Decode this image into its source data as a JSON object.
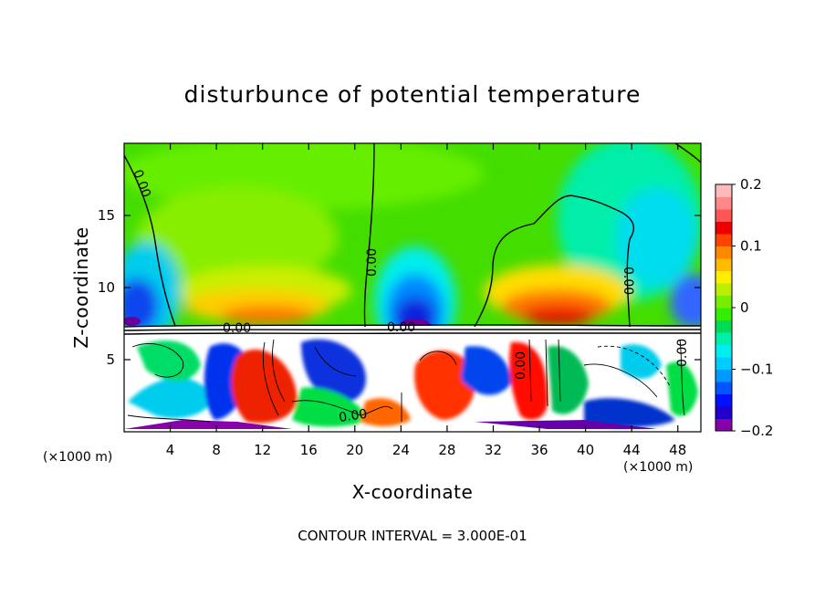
{
  "chart_data": {
    "type": "heatmap",
    "title": "disturbunce of potential temperature",
    "xlabel": "X-coordinate",
    "ylabel": "Z-coordinate",
    "x_unit": "(×1000 m)",
    "x_unit_right": "(×1000 m)",
    "xlim": [
      0,
      50
    ],
    "ylim": [
      0,
      20
    ],
    "xticks": [
      4,
      8,
      12,
      16,
      20,
      24,
      28,
      32,
      36,
      40,
      44,
      48
    ],
    "yticks": [
      5,
      10,
      15
    ],
    "colorbar": {
      "ticks": [
        0.2,
        0.1,
        0,
        -0.1,
        -0.2
      ],
      "tick_labels": [
        "0.2",
        "0.1",
        "0",
        "−0.1",
        "−0.2"
      ],
      "range": [
        -0.2,
        0.2
      ],
      "colors": [
        "#8800aa",
        "#2200cc",
        "#0011ff",
        "#0055ff",
        "#0099ff",
        "#00ccff",
        "#00eeee",
        "#00eeaa",
        "#00dd55",
        "#33ee00",
        "#77ee00",
        "#bbee00",
        "#ffee00",
        "#ffbb00",
        "#ff8800",
        "#ff4400",
        "#ee0000",
        "#ff5555",
        "#ff8888",
        "#ffbbbb"
      ]
    },
    "contour_interval_text": "CONTOUR INTERVAL = 3.000E-01",
    "contour_labels": [
      "0.00",
      "0.00",
      "0.00",
      "0.00",
      "0.00",
      "0.00",
      "0.00",
      "0.00",
      "0.00"
    ],
    "grid": false,
    "legend": "colorbar-right"
  }
}
